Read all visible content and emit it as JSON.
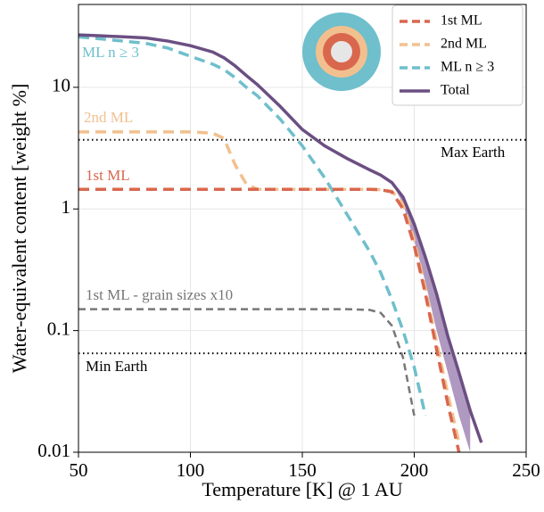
{
  "chart_data": {
    "type": "line",
    "x_label": "Temperature [K] @ 1 AU",
    "y_label": "Water-equivalent content [weight %]",
    "x": [
      50,
      60,
      70,
      80,
      90,
      100,
      110,
      115,
      120,
      125,
      130,
      140,
      150,
      160,
      170,
      180,
      185,
      190,
      195,
      200,
      205,
      210,
      215,
      220,
      225,
      230
    ],
    "series": [
      {
        "name": "1st ML",
        "color": "#d9674e",
        "style": "dashed",
        "values": [
          1.45,
          1.45,
          1.45,
          1.45,
          1.45,
          1.45,
          1.45,
          1.45,
          1.45,
          1.45,
          1.45,
          1.45,
          1.45,
          1.45,
          1.45,
          1.45,
          1.44,
          1.38,
          1.0,
          0.5,
          0.2,
          0.07,
          0.025,
          0.01,
          null,
          null
        ]
      },
      {
        "name": "2nd ML",
        "color": "#f2c08f",
        "style": "dashed",
        "values": [
          4.3,
          4.3,
          4.3,
          4.3,
          4.3,
          4.3,
          4.2,
          3.8,
          2.3,
          1.6,
          1.45,
          1.45,
          1.45,
          1.45,
          1.45,
          1.45,
          1.44,
          1.4,
          1.1,
          0.55,
          0.22,
          0.08,
          0.03,
          0.012,
          null,
          null
        ]
      },
      {
        "name": "ML n ≥ 3",
        "color": "#6fbfcc",
        "style": "dashed",
        "values": [
          26,
          25,
          24,
          23,
          21,
          18,
          15.5,
          14,
          12,
          10,
          8.5,
          5.5,
          3.3,
          1.8,
          0.9,
          0.45,
          0.3,
          0.18,
          0.1,
          0.05,
          0.02,
          null,
          null,
          null,
          null,
          null
        ]
      },
      {
        "name": "Total",
        "color": "#6b4f82",
        "style": "solid",
        "band_color": "#9b7fb0",
        "values": [
          27,
          26.5,
          26,
          25.5,
          24,
          22,
          19.5,
          17.5,
          15,
          12.5,
          10.5,
          7,
          4.5,
          3.3,
          2.6,
          2.1,
          1.9,
          1.65,
          1.25,
          0.75,
          0.4,
          0.2,
          0.09,
          0.045,
          0.022,
          0.012
        ],
        "band_lower": [
          null,
          null,
          null,
          null,
          null,
          null,
          null,
          null,
          null,
          null,
          null,
          null,
          null,
          null,
          null,
          null,
          null,
          1.65,
          1.1,
          0.55,
          0.25,
          0.1,
          0.045,
          0.02,
          0.01,
          null
        ]
      },
      {
        "name": "1st ML - grain sizes x10",
        "color": "#777777",
        "style": "dashed",
        "in_legend": false,
        "values": [
          0.15,
          0.15,
          0.15,
          0.15,
          0.15,
          0.15,
          0.15,
          0.15,
          0.15,
          0.15,
          0.15,
          0.15,
          0.15,
          0.15,
          0.15,
          0.148,
          0.14,
          0.11,
          0.06,
          0.02,
          null,
          null,
          null,
          null,
          null,
          null
        ]
      }
    ],
    "reference_lines": [
      {
        "label": "Max Earth",
        "value": 3.7
      },
      {
        "label": "Min Earth",
        "value": 0.065
      }
    ],
    "xlim": [
      50,
      250
    ],
    "xticks": [
      50,
      100,
      150,
      200,
      250
    ],
    "ylim": [
      0.01,
      48
    ],
    "yticks": [
      0.01,
      0.1,
      1,
      10
    ],
    "log_y": true,
    "grid": true,
    "legend": "upper right"
  }
}
